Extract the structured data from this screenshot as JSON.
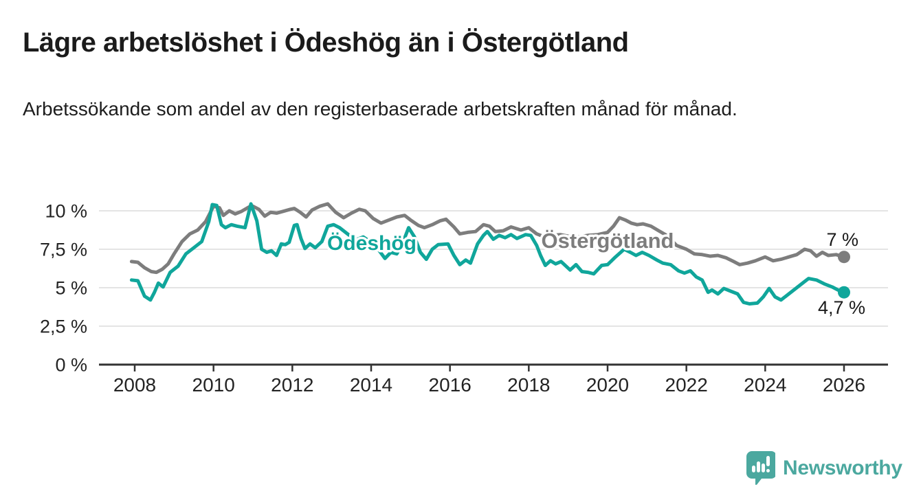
{
  "header": {
    "title": "Lägre arbetslöshet i Ödeshög än i Östergötland",
    "subtitle": "Arbetssökande som andel av den registerbaserade arbetskraften månad för månad."
  },
  "branding": {
    "name": "Newsworthy",
    "logo_icon": "speech-bubble-bar-chart-icon",
    "brand_color": "#4ba89f"
  },
  "palette": {
    "background": "#ffffff",
    "grid": "#dcdcdc",
    "axis": "#333333",
    "text": "#1d1d1d",
    "value_label_text": "#1a1a1a"
  },
  "chart_data": {
    "type": "line",
    "title": "Lägre arbetslöshet i Ödeshög än i Östergötland",
    "subtitle": "Arbetssökande som andel av den registerbaserade arbetskraften månad för månad.",
    "unit": "%",
    "grid": true,
    "legend_position": "inline-labels",
    "x_axis": {
      "range": [
        2007.1,
        2027.15
      ],
      "ticks": [
        {
          "value": 2008,
          "label": "2008"
        },
        {
          "value": 2010,
          "label": "2010"
        },
        {
          "value": 2012,
          "label": "2012"
        },
        {
          "value": 2014,
          "label": "2014"
        },
        {
          "value": 2016,
          "label": "2016"
        },
        {
          "value": 2018,
          "label": "2018"
        },
        {
          "value": 2020,
          "label": "2020"
        },
        {
          "value": 2022,
          "label": "2022"
        },
        {
          "value": 2024,
          "label": "2024"
        },
        {
          "value": 2026,
          "label": "2026"
        }
      ]
    },
    "y_axis": {
      "range": [
        0,
        10.9
      ],
      "ticks": [
        {
          "value": 0,
          "label": "0 %"
        },
        {
          "value": 2.5,
          "label": "2,5 %"
        },
        {
          "value": 5,
          "label": "5 %"
        },
        {
          "value": 7.5,
          "label": "7,5 %"
        },
        {
          "value": 10,
          "label": "10 %"
        }
      ]
    },
    "series": [
      {
        "name": "Östergötland",
        "color": "#7d7d7d",
        "end_value": 7.0,
        "end_value_label": "7 %",
        "points": [
          [
            2007.92,
            6.7
          ],
          [
            2008.08,
            6.65
          ],
          [
            2008.25,
            6.3
          ],
          [
            2008.42,
            6.05
          ],
          [
            2008.55,
            6.0
          ],
          [
            2008.7,
            6.2
          ],
          [
            2008.85,
            6.55
          ],
          [
            2009.0,
            7.2
          ],
          [
            2009.2,
            8.0
          ],
          [
            2009.4,
            8.5
          ],
          [
            2009.6,
            8.75
          ],
          [
            2009.8,
            9.3
          ],
          [
            2010.0,
            10.3
          ],
          [
            2010.15,
            10.2
          ],
          [
            2010.25,
            9.7
          ],
          [
            2010.4,
            10.0
          ],
          [
            2010.55,
            9.8
          ],
          [
            2010.7,
            9.95
          ],
          [
            2010.9,
            10.25
          ],
          [
            2011.0,
            10.3
          ],
          [
            2011.15,
            10.1
          ],
          [
            2011.3,
            9.65
          ],
          [
            2011.45,
            9.9
          ],
          [
            2011.6,
            9.85
          ],
          [
            2011.75,
            9.95
          ],
          [
            2011.95,
            10.1
          ],
          [
            2012.05,
            10.15
          ],
          [
            2012.2,
            9.9
          ],
          [
            2012.35,
            9.6
          ],
          [
            2012.5,
            10.05
          ],
          [
            2012.7,
            10.3
          ],
          [
            2012.9,
            10.45
          ],
          [
            2013.1,
            9.9
          ],
          [
            2013.3,
            9.55
          ],
          [
            2013.5,
            9.85
          ],
          [
            2013.7,
            10.1
          ],
          [
            2013.85,
            10.0
          ],
          [
            2014.05,
            9.5
          ],
          [
            2014.25,
            9.2
          ],
          [
            2014.45,
            9.4
          ],
          [
            2014.65,
            9.6
          ],
          [
            2014.85,
            9.7
          ],
          [
            2015.0,
            9.4
          ],
          [
            2015.2,
            9.05
          ],
          [
            2015.35,
            8.9
          ],
          [
            2015.55,
            9.1
          ],
          [
            2015.75,
            9.35
          ],
          [
            2015.9,
            9.45
          ],
          [
            2016.1,
            8.95
          ],
          [
            2016.25,
            8.5
          ],
          [
            2016.45,
            8.6
          ],
          [
            2016.65,
            8.65
          ],
          [
            2016.85,
            9.1
          ],
          [
            2017.0,
            9.0
          ],
          [
            2017.15,
            8.65
          ],
          [
            2017.35,
            8.7
          ],
          [
            2017.55,
            8.95
          ],
          [
            2017.8,
            8.75
          ],
          [
            2018.0,
            8.9
          ],
          [
            2018.2,
            8.5
          ],
          [
            2018.4,
            8.3
          ],
          [
            2018.6,
            8.4
          ],
          [
            2018.8,
            8.45
          ],
          [
            2019.0,
            8.35
          ],
          [
            2019.25,
            8.3
          ],
          [
            2019.5,
            8.4
          ],
          [
            2019.75,
            8.45
          ],
          [
            2020.0,
            8.6
          ],
          [
            2020.15,
            9.0
          ],
          [
            2020.3,
            9.55
          ],
          [
            2020.45,
            9.4
          ],
          [
            2020.6,
            9.2
          ],
          [
            2020.75,
            9.1
          ],
          [
            2020.9,
            9.15
          ],
          [
            2021.1,
            9.0
          ],
          [
            2021.3,
            8.7
          ],
          [
            2021.5,
            8.4
          ],
          [
            2021.75,
            7.75
          ],
          [
            2022.0,
            7.5
          ],
          [
            2022.2,
            7.2
          ],
          [
            2022.4,
            7.15
          ],
          [
            2022.6,
            7.05
          ],
          [
            2022.8,
            7.1
          ],
          [
            2023.0,
            6.95
          ],
          [
            2023.2,
            6.7
          ],
          [
            2023.35,
            6.5
          ],
          [
            2023.55,
            6.6
          ],
          [
            2023.75,
            6.75
          ],
          [
            2024.0,
            7.0
          ],
          [
            2024.2,
            6.75
          ],
          [
            2024.4,
            6.85
          ],
          [
            2024.6,
            7.0
          ],
          [
            2024.8,
            7.15
          ],
          [
            2025.0,
            7.5
          ],
          [
            2025.15,
            7.4
          ],
          [
            2025.3,
            7.05
          ],
          [
            2025.45,
            7.3
          ],
          [
            2025.6,
            7.1
          ],
          [
            2025.8,
            7.15
          ],
          [
            2026.0,
            7.0
          ]
        ]
      },
      {
        "name": "Ödeshög",
        "color": "#10a69b",
        "end_value": 4.7,
        "end_value_label": "4,7 %",
        "points": [
          [
            2007.92,
            5.5
          ],
          [
            2008.08,
            5.45
          ],
          [
            2008.25,
            4.45
          ],
          [
            2008.4,
            4.2
          ],
          [
            2008.5,
            4.7
          ],
          [
            2008.6,
            5.3
          ],
          [
            2008.72,
            5.05
          ],
          [
            2008.9,
            6.0
          ],
          [
            2009.1,
            6.4
          ],
          [
            2009.3,
            7.2
          ],
          [
            2009.5,
            7.6
          ],
          [
            2009.7,
            8.0
          ],
          [
            2009.88,
            9.3
          ],
          [
            2009.97,
            10.4
          ],
          [
            2010.08,
            10.35
          ],
          [
            2010.2,
            9.1
          ],
          [
            2010.3,
            8.9
          ],
          [
            2010.45,
            9.1
          ],
          [
            2010.6,
            9.0
          ],
          [
            2010.8,
            8.9
          ],
          [
            2010.95,
            10.45
          ],
          [
            2011.1,
            9.35
          ],
          [
            2011.22,
            7.5
          ],
          [
            2011.35,
            7.3
          ],
          [
            2011.47,
            7.4
          ],
          [
            2011.6,
            7.1
          ],
          [
            2011.72,
            7.85
          ],
          [
            2011.82,
            7.8
          ],
          [
            2011.92,
            7.95
          ],
          [
            2012.05,
            9.05
          ],
          [
            2012.12,
            9.1
          ],
          [
            2012.22,
            8.2
          ],
          [
            2012.32,
            7.55
          ],
          [
            2012.45,
            7.85
          ],
          [
            2012.58,
            7.6
          ],
          [
            2012.75,
            8.0
          ],
          [
            2012.9,
            9.0
          ],
          [
            2013.05,
            9.1
          ],
          [
            2013.2,
            8.9
          ],
          [
            2013.4,
            8.5
          ],
          [
            2013.6,
            8.1
          ],
          [
            2013.8,
            8.3
          ],
          [
            2014.0,
            7.95
          ],
          [
            2014.15,
            7.6
          ],
          [
            2014.35,
            6.9
          ],
          [
            2014.5,
            7.3
          ],
          [
            2014.65,
            7.2
          ],
          [
            2014.8,
            7.9
          ],
          [
            2014.95,
            8.9
          ],
          [
            2015.1,
            8.3
          ],
          [
            2015.25,
            7.3
          ],
          [
            2015.4,
            6.85
          ],
          [
            2015.55,
            7.5
          ],
          [
            2015.7,
            7.8
          ],
          [
            2015.95,
            7.85
          ],
          [
            2016.1,
            7.1
          ],
          [
            2016.25,
            6.5
          ],
          [
            2016.4,
            6.8
          ],
          [
            2016.52,
            6.6
          ],
          [
            2016.7,
            7.85
          ],
          [
            2016.85,
            8.4
          ],
          [
            2016.95,
            8.65
          ],
          [
            2017.1,
            8.15
          ],
          [
            2017.25,
            8.4
          ],
          [
            2017.4,
            8.25
          ],
          [
            2017.55,
            8.45
          ],
          [
            2017.7,
            8.2
          ],
          [
            2017.92,
            8.45
          ],
          [
            2018.05,
            8.4
          ],
          [
            2018.2,
            7.75
          ],
          [
            2018.3,
            7.1
          ],
          [
            2018.42,
            6.45
          ],
          [
            2018.55,
            6.75
          ],
          [
            2018.68,
            6.55
          ],
          [
            2018.82,
            6.7
          ],
          [
            2019.05,
            6.15
          ],
          [
            2019.2,
            6.5
          ],
          [
            2019.35,
            6.05
          ],
          [
            2019.5,
            6.0
          ],
          [
            2019.65,
            5.9
          ],
          [
            2019.85,
            6.45
          ],
          [
            2020.0,
            6.5
          ],
          [
            2020.2,
            7.0
          ],
          [
            2020.42,
            7.5
          ],
          [
            2020.58,
            7.3
          ],
          [
            2020.72,
            7.1
          ],
          [
            2020.88,
            7.3
          ],
          [
            2021.05,
            7.1
          ],
          [
            2021.25,
            6.8
          ],
          [
            2021.4,
            6.6
          ],
          [
            2021.6,
            6.5
          ],
          [
            2021.8,
            6.1
          ],
          [
            2021.95,
            5.95
          ],
          [
            2022.1,
            6.1
          ],
          [
            2022.25,
            5.7
          ],
          [
            2022.4,
            5.5
          ],
          [
            2022.55,
            4.7
          ],
          [
            2022.65,
            4.85
          ],
          [
            2022.8,
            4.6
          ],
          [
            2022.95,
            4.95
          ],
          [
            2023.1,
            4.8
          ],
          [
            2023.3,
            4.6
          ],
          [
            2023.45,
            4.05
          ],
          [
            2023.6,
            3.95
          ],
          [
            2023.8,
            4.0
          ],
          [
            2023.95,
            4.4
          ],
          [
            2024.1,
            4.95
          ],
          [
            2024.25,
            4.4
          ],
          [
            2024.4,
            4.2
          ],
          [
            2024.6,
            4.6
          ],
          [
            2024.8,
            5.0
          ],
          [
            2025.0,
            5.4
          ],
          [
            2025.1,
            5.6
          ],
          [
            2025.3,
            5.5
          ],
          [
            2025.5,
            5.25
          ],
          [
            2025.7,
            5.05
          ],
          [
            2025.85,
            4.85
          ],
          [
            2026.0,
            4.7
          ]
        ]
      }
    ]
  }
}
